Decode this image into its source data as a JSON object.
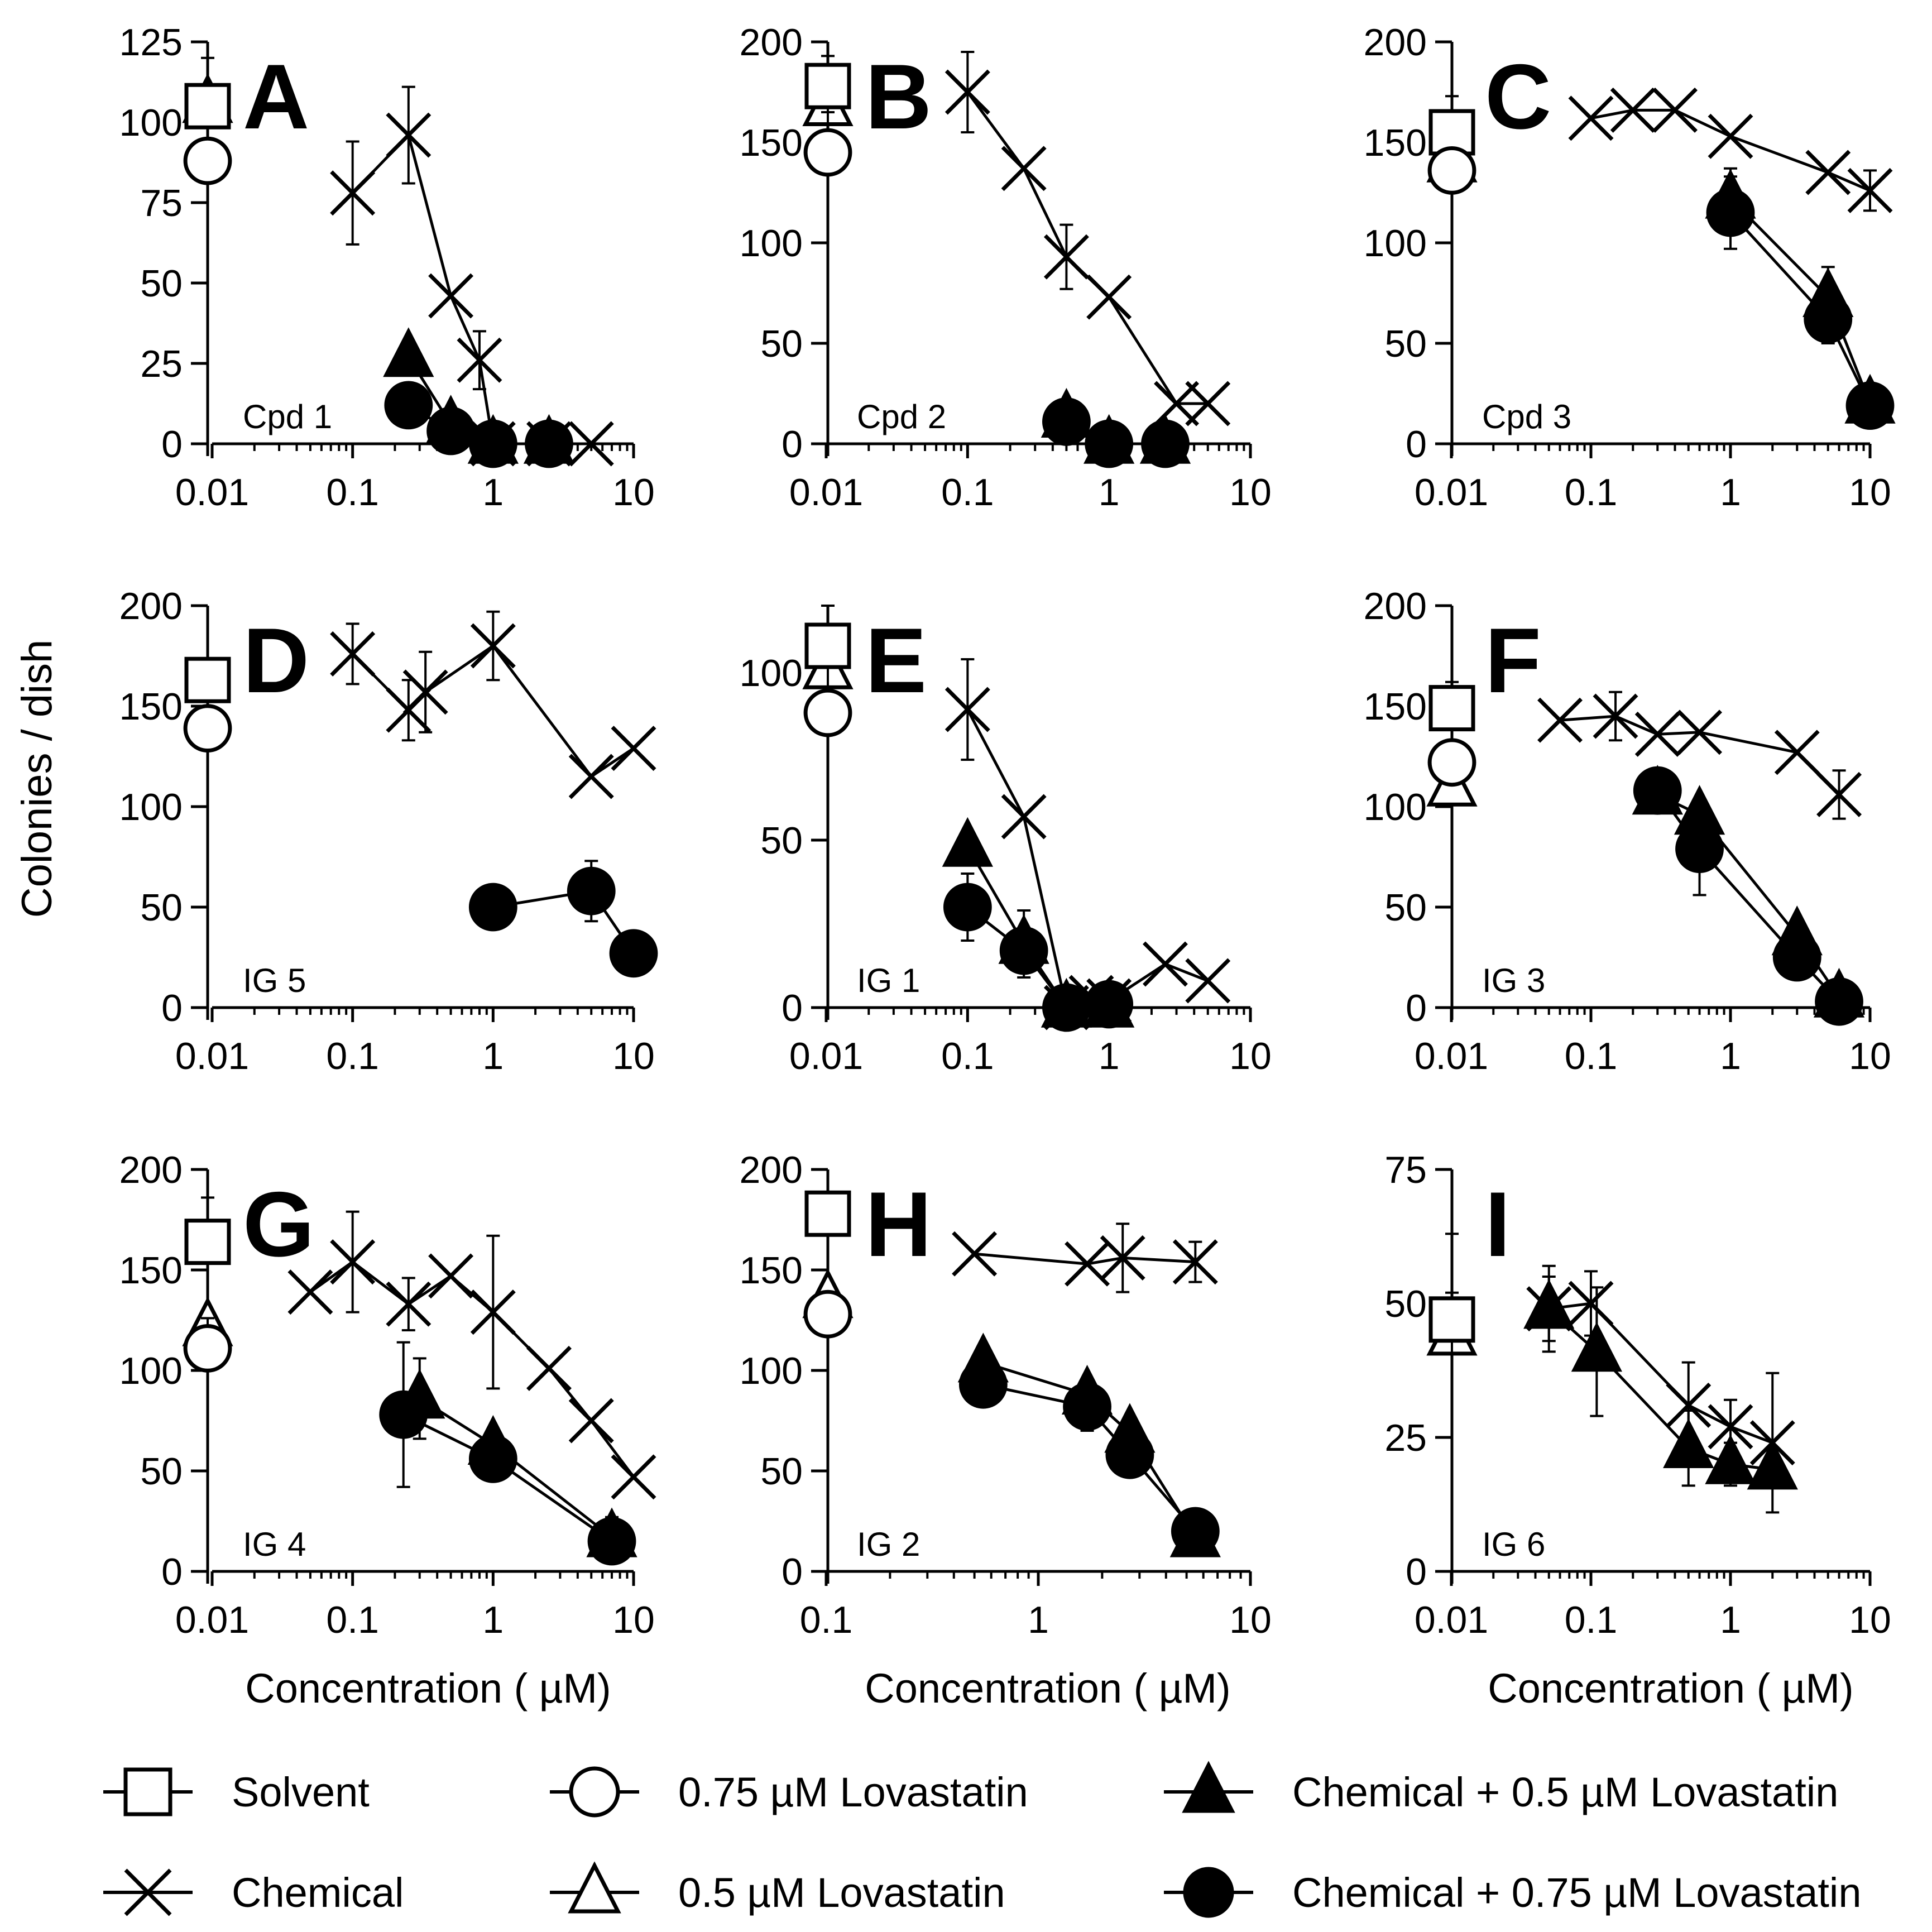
{
  "figure": {
    "y_axis_label": "Colonies / dish",
    "x_axis_label": "Concentration ( µM)"
  },
  "legend": [
    {
      "key": "solvent",
      "label": "Solvent",
      "marker": "square-open"
    },
    {
      "key": "lov075",
      "label": "0.75 µM Lovastatin",
      "marker": "circle-open"
    },
    {
      "key": "chem_lov05",
      "label": "Chemical + 0.5 µM Lovastatin",
      "marker": "triangle-filled"
    },
    {
      "key": "chemical",
      "label": "Chemical",
      "marker": "cross"
    },
    {
      "key": "lov05",
      "label": "0.5 µM Lovastatin",
      "marker": "triangle-open"
    },
    {
      "key": "chem_lov075",
      "label": "Chemical + 0.75 µM Lovastatin",
      "marker": "circle-filled"
    }
  ],
  "chart_data": [
    {
      "type": "scatter",
      "panel": "A",
      "compound": "Cpd 1",
      "xscale": "log",
      "xlim": [
        0.01,
        10
      ],
      "ylim": [
        0,
        125
      ],
      "yticks": [
        0,
        25,
        50,
        75,
        100,
        125
      ],
      "xticks": [
        0.01,
        0.1,
        1,
        10
      ],
      "controls": {
        "solvent": {
          "y": 105,
          "err": 15
        },
        "lov075": {
          "y": 88,
          "err": 0
        },
        "lov05": {
          "y": 106,
          "err": 0
        }
      },
      "chemical": [
        {
          "x": 0.1,
          "y": 78,
          "err": 16
        },
        {
          "x": 0.25,
          "y": 96,
          "err": 15
        },
        {
          "x": 0.5,
          "y": 46,
          "err": 0
        },
        {
          "x": 0.8,
          "y": 26,
          "err": 9
        },
        {
          "x": 1,
          "y": 0,
          "err": 0
        },
        {
          "x": 2.5,
          "y": 0,
          "err": 0
        },
        {
          "x": 5,
          "y": 0,
          "err": 0
        }
      ],
      "chem_lov05": [
        {
          "x": 0.25,
          "y": 27,
          "err": 0
        },
        {
          "x": 0.5,
          "y": 6,
          "err": 0
        },
        {
          "x": 1,
          "y": 0,
          "err": 0
        },
        {
          "x": 2.5,
          "y": 0,
          "err": 0
        }
      ],
      "chem_lov075": [
        {
          "x": 0.25,
          "y": 12,
          "err": 0
        },
        {
          "x": 0.5,
          "y": 4,
          "err": 0
        },
        {
          "x": 1,
          "y": 0,
          "err": 0
        },
        {
          "x": 2.5,
          "y": 0,
          "err": 0
        }
      ]
    },
    {
      "type": "scatter",
      "panel": "B",
      "compound": "Cpd 2",
      "xscale": "log",
      "xlim": [
        0.01,
        10
      ],
      "ylim": [
        0,
        200
      ],
      "yticks": [
        0,
        50,
        100,
        150,
        200
      ],
      "xticks": [
        0.01,
        0.1,
        1,
        10
      ],
      "controls": {
        "solvent": {
          "y": 178,
          "err": 15
        },
        "lov075": {
          "y": 145,
          "err": 20
        },
        "lov05": {
          "y": 168,
          "err": 0
        }
      },
      "chemical": [
        {
          "x": 0.1,
          "y": 175,
          "err": 20
        },
        {
          "x": 0.25,
          "y": 137,
          "err": 0
        },
        {
          "x": 0.5,
          "y": 93,
          "err": 16
        },
        {
          "x": 1,
          "y": 73,
          "err": 0
        },
        {
          "x": 3,
          "y": 20,
          "err": 0
        },
        {
          "x": 5,
          "y": 20,
          "err": 0
        }
      ],
      "chem_lov05": [
        {
          "x": 0.5,
          "y": 13,
          "err": 0
        },
        {
          "x": 1,
          "y": 0,
          "err": 0
        },
        {
          "x": 2.5,
          "y": 0,
          "err": 0
        }
      ],
      "chem_lov075": [
        {
          "x": 0.5,
          "y": 11,
          "err": 0
        },
        {
          "x": 1,
          "y": 0,
          "err": 0
        },
        {
          "x": 2.5,
          "y": 0,
          "err": 0
        }
      ]
    },
    {
      "type": "scatter",
      "panel": "C",
      "compound": "Cpd 3",
      "xscale": "log",
      "xlim": [
        0.01,
        10
      ],
      "ylim": [
        0,
        200
      ],
      "yticks": [
        0,
        50,
        100,
        150,
        200
      ],
      "xticks": [
        0.01,
        0.1,
        1,
        10
      ],
      "controls": {
        "solvent": {
          "y": 155,
          "err": 18
        },
        "lov075": {
          "y": 136,
          "err": 0
        },
        "lov05": {
          "y": 140,
          "err": 0
        }
      },
      "chemical": [
        {
          "x": 0.1,
          "y": 162,
          "err": 0
        },
        {
          "x": 0.2,
          "y": 166,
          "err": 0
        },
        {
          "x": 0.4,
          "y": 166,
          "err": 0
        },
        {
          "x": 1,
          "y": 153,
          "err": 0
        },
        {
          "x": 5,
          "y": 135,
          "err": 0
        },
        {
          "x": 10,
          "y": 126,
          "err": 10
        }
      ],
      "chem_lov05": [
        {
          "x": 1,
          "y": 122,
          "err": 15
        },
        {
          "x": 5,
          "y": 73,
          "err": 15
        },
        {
          "x": 10,
          "y": 20,
          "err": 0
        }
      ],
      "chem_lov075": [
        {
          "x": 1,
          "y": 115,
          "err": 18
        },
        {
          "x": 5,
          "y": 62,
          "err": 12
        },
        {
          "x": 10,
          "y": 19,
          "err": 0
        }
      ]
    },
    {
      "type": "scatter",
      "panel": "D",
      "compound": "IG 5",
      "xscale": "log",
      "xlim": [
        0.01,
        10
      ],
      "ylim": [
        0,
        200
      ],
      "yticks": [
        0,
        50,
        100,
        150,
        200
      ],
      "xticks": [
        0.01,
        0.1,
        1,
        10
      ],
      "controls": {
        "solvent": {
          "y": 163,
          "err": 0
        },
        "lov075": {
          "y": 139,
          "err": 0
        },
        "lov05": null
      },
      "chemical": [
        {
          "x": 0.1,
          "y": 176,
          "err": 15
        },
        {
          "x": 0.25,
          "y": 148,
          "err": 15
        },
        {
          "x": 0.33,
          "y": 157,
          "err": 20
        },
        {
          "x": 1,
          "y": 180,
          "err": 17
        },
        {
          "x": 5,
          "y": 115,
          "err": 0
        },
        {
          "x": 10,
          "y": 129,
          "err": 0
        }
      ],
      "chem_lov05": [],
      "chem_lov075": [
        {
          "x": 1,
          "y": 50,
          "err": 0
        },
        {
          "x": 5,
          "y": 58,
          "err": 15
        },
        {
          "x": 10,
          "y": 27,
          "err": 0
        }
      ]
    },
    {
      "type": "scatter",
      "panel": "E",
      "compound": "IG 1",
      "xscale": "log",
      "xlim": [
        0.01,
        10
      ],
      "ylim": [
        0,
        120
      ],
      "yticks": [
        0,
        50,
        100
      ],
      "xticks": [
        0.01,
        0.1,
        1,
        10
      ],
      "controls": {
        "solvent": {
          "y": 108,
          "err": 12
        },
        "lov075": {
          "y": 88,
          "err": 0
        },
        "lov05": {
          "y": 101,
          "err": 0
        }
      },
      "chemical": [
        {
          "x": 0.1,
          "y": 89,
          "err": 15
        },
        {
          "x": 0.25,
          "y": 57,
          "err": 0
        },
        {
          "x": 0.5,
          "y": 0,
          "err": 0
        },
        {
          "x": 0.75,
          "y": 3,
          "err": 0
        },
        {
          "x": 1,
          "y": 2,
          "err": 0
        },
        {
          "x": 2.5,
          "y": 13,
          "err": 0
        },
        {
          "x": 5,
          "y": 8,
          "err": 0
        }
      ],
      "chem_lov05": [
        {
          "x": 0.1,
          "y": 48,
          "err": 0
        },
        {
          "x": 0.25,
          "y": 19,
          "err": 10
        },
        {
          "x": 0.5,
          "y": 0,
          "err": 0
        },
        {
          "x": 1,
          "y": 0,
          "err": 0
        }
      ],
      "chem_lov075": [
        {
          "x": 0.1,
          "y": 30,
          "err": 10
        },
        {
          "x": 0.25,
          "y": 17,
          "err": 0
        },
        {
          "x": 0.5,
          "y": 0,
          "err": 0
        },
        {
          "x": 1,
          "y": 1,
          "err": 0
        }
      ]
    },
    {
      "type": "scatter",
      "panel": "F",
      "compound": "IG 3",
      "xscale": "log",
      "xlim": [
        0.01,
        10
      ],
      "ylim": [
        0,
        200
      ],
      "yticks": [
        0,
        50,
        100,
        150,
        200
      ],
      "xticks": [
        0.01,
        0.1,
        1,
        10
      ],
      "controls": {
        "solvent": {
          "y": 149,
          "err": 13
        },
        "lov075": {
          "y": 122,
          "err": 0
        },
        "lov05": {
          "y": 110,
          "err": 0
        }
      },
      "chemical": [
        {
          "x": 0.06,
          "y": 143,
          "err": 0
        },
        {
          "x": 0.15,
          "y": 145,
          "err": 12
        },
        {
          "x": 0.3,
          "y": 136,
          "err": 0
        },
        {
          "x": 0.6,
          "y": 137,
          "err": 0
        },
        {
          "x": 3,
          "y": 127,
          "err": 0
        },
        {
          "x": 6,
          "y": 106,
          "err": 12
        }
      ],
      "chem_lov05": [
        {
          "x": 0.3,
          "y": 106,
          "err": 0
        },
        {
          "x": 0.6,
          "y": 96,
          "err": 0
        },
        {
          "x": 3,
          "y": 36,
          "err": 0
        },
        {
          "x": 6,
          "y": 5,
          "err": 0
        }
      ],
      "chem_lov075": [
        {
          "x": 0.3,
          "y": 108,
          "err": 0
        },
        {
          "x": 0.6,
          "y": 79,
          "err": 23
        },
        {
          "x": 3,
          "y": 25,
          "err": 0
        },
        {
          "x": 6,
          "y": 3,
          "err": 0
        }
      ]
    },
    {
      "type": "scatter",
      "panel": "G",
      "compound": "IG 4",
      "xscale": "log",
      "xlim": [
        0.01,
        10
      ],
      "ylim": [
        0,
        200
      ],
      "yticks": [
        0,
        50,
        100,
        150,
        200
      ],
      "xticks": [
        0.01,
        0.1,
        1,
        10
      ],
      "controls": {
        "solvent": {
          "y": 164,
          "err": 22
        },
        "lov075": {
          "y": 111,
          "err": 15
        },
        "lov05": {
          "y": 122,
          "err": 0
        }
      },
      "chemical": [
        {
          "x": 0.05,
          "y": 139,
          "err": 0
        },
        {
          "x": 0.1,
          "y": 154,
          "err": 25
        },
        {
          "x": 0.25,
          "y": 133,
          "err": 13
        },
        {
          "x": 0.5,
          "y": 147,
          "err": 0
        },
        {
          "x": 1,
          "y": 129,
          "err": 38
        },
        {
          "x": 2.5,
          "y": 101,
          "err": 0
        },
        {
          "x": 5,
          "y": 75,
          "err": 0
        },
        {
          "x": 10,
          "y": 47,
          "err": 0
        }
      ],
      "chem_lov05": [
        {
          "x": 0.3,
          "y": 86,
          "err": 20
        },
        {
          "x": 1,
          "y": 63,
          "err": 0
        },
        {
          "x": 7,
          "y": 17,
          "err": 10
        }
      ],
      "chem_lov075": [
        {
          "x": 0.23,
          "y": 78,
          "err": 36
        },
        {
          "x": 1,
          "y": 56,
          "err": 0
        },
        {
          "x": 7,
          "y": 15,
          "err": 0
        }
      ]
    },
    {
      "type": "scatter",
      "panel": "H",
      "compound": "IG 2",
      "xscale": "log",
      "xlim": [
        0.1,
        10
      ],
      "ylim": [
        0,
        200
      ],
      "yticks": [
        0,
        50,
        100,
        150,
        200
      ],
      "xticks": [
        0.1,
        1,
        10
      ],
      "controls": {
        "solvent": {
          "y": 178,
          "err": 0
        },
        "lov075": {
          "y": 128,
          "err": 0
        },
        "lov05": {
          "y": 136,
          "err": 0
        }
      },
      "chemical": [
        {
          "x": 0.5,
          "y": 158,
          "err": 0
        },
        {
          "x": 1.7,
          "y": 153,
          "err": 0
        },
        {
          "x": 2.5,
          "y": 156,
          "err": 17
        },
        {
          "x": 5.5,
          "y": 154,
          "err": 10
        }
      ],
      "chem_lov05": [
        {
          "x": 0.55,
          "y": 104,
          "err": 0
        },
        {
          "x": 1.7,
          "y": 88,
          "err": 0
        },
        {
          "x": 2.7,
          "y": 69,
          "err": 0
        },
        {
          "x": 5.5,
          "y": 17,
          "err": 0
        }
      ],
      "chem_lov075": [
        {
          "x": 0.55,
          "y": 93,
          "err": 0
        },
        {
          "x": 1.7,
          "y": 82,
          "err": 12
        },
        {
          "x": 2.7,
          "y": 58,
          "err": 0
        },
        {
          "x": 5.5,
          "y": 20,
          "err": 0
        }
      ]
    },
    {
      "type": "scatter",
      "panel": "I",
      "compound": "IG 6",
      "xscale": "log",
      "xlim": [
        0.01,
        10
      ],
      "ylim": [
        0,
        75
      ],
      "yticks": [
        0,
        25,
        50,
        75
      ],
      "xticks": [
        0.01,
        0.1,
        1,
        10
      ],
      "controls": {
        "solvent": {
          "y": 47,
          "err": 16
        },
        "lov075": null,
        "lov05": {
          "y": 44,
          "err": 8
        }
      },
      "chemical": [
        {
          "x": 0.05,
          "y": 49,
          "err": 8
        },
        {
          "x": 0.1,
          "y": 50,
          "err": 6
        },
        {
          "x": 0.5,
          "y": 31,
          "err": 8
        },
        {
          "x": 1,
          "y": 27,
          "err": 5
        },
        {
          "x": 2,
          "y": 24,
          "err": 13
        }
      ],
      "chem_lov05": [
        {
          "x": 0.05,
          "y": 49,
          "err": 6
        },
        {
          "x": 0.11,
          "y": 41,
          "err": 12
        },
        {
          "x": 0.5,
          "y": 23,
          "err": 7
        },
        {
          "x": 1,
          "y": 20,
          "err": 4
        },
        {
          "x": 2,
          "y": 19,
          "err": 0
        }
      ],
      "chem_lov075": []
    }
  ]
}
